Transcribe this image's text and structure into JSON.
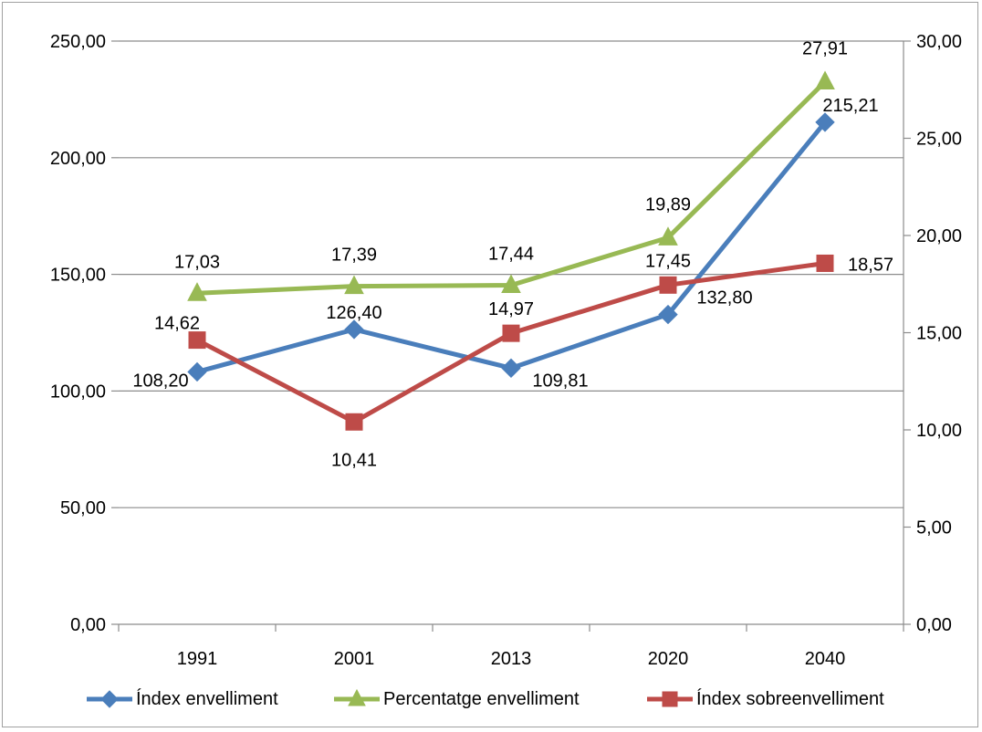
{
  "chart_data": {
    "type": "line",
    "categories": [
      "1991",
      "2001",
      "2013",
      "2020",
      "2040"
    ],
    "y_left": {
      "min": 0,
      "max": 250,
      "step": 50,
      "tick_labels": [
        "0,00",
        "50,00",
        "100,00",
        "150,00",
        "200,00",
        "250,00"
      ]
    },
    "y_right": {
      "min": 0,
      "max": 30,
      "step": 5,
      "tick_labels": [
        "0,00",
        "5,00",
        "10,00",
        "15,00",
        "20,00",
        "25,00",
        "30,00"
      ]
    },
    "grid": true,
    "legend_position": "bottom",
    "series": [
      {
        "name": "Índex envelliment",
        "axis": "left",
        "color": "#4a7ebb",
        "marker": "diamond",
        "values": [
          108.2,
          126.4,
          109.81,
          132.8,
          215.21
        ],
        "labels": [
          "108,20",
          "126,40",
          "109,81",
          "132,80",
          "215,21"
        ]
      },
      {
        "name": "Percentatge envelliment",
        "axis": "right",
        "color": "#98b954",
        "marker": "triangle",
        "values": [
          17.03,
          17.39,
          17.44,
          19.89,
          27.91
        ],
        "labels": [
          "17,03",
          "17,39",
          "17,44",
          "19,89",
          "27,91"
        ]
      },
      {
        "name": "Índex sobreenvelliment",
        "axis": "right",
        "color": "#be4b48",
        "marker": "square",
        "values": [
          14.62,
          10.41,
          14.97,
          17.45,
          18.57
        ],
        "labels": [
          "14,62",
          "10,41",
          "14,97",
          "17,45",
          "18,57"
        ]
      }
    ]
  }
}
